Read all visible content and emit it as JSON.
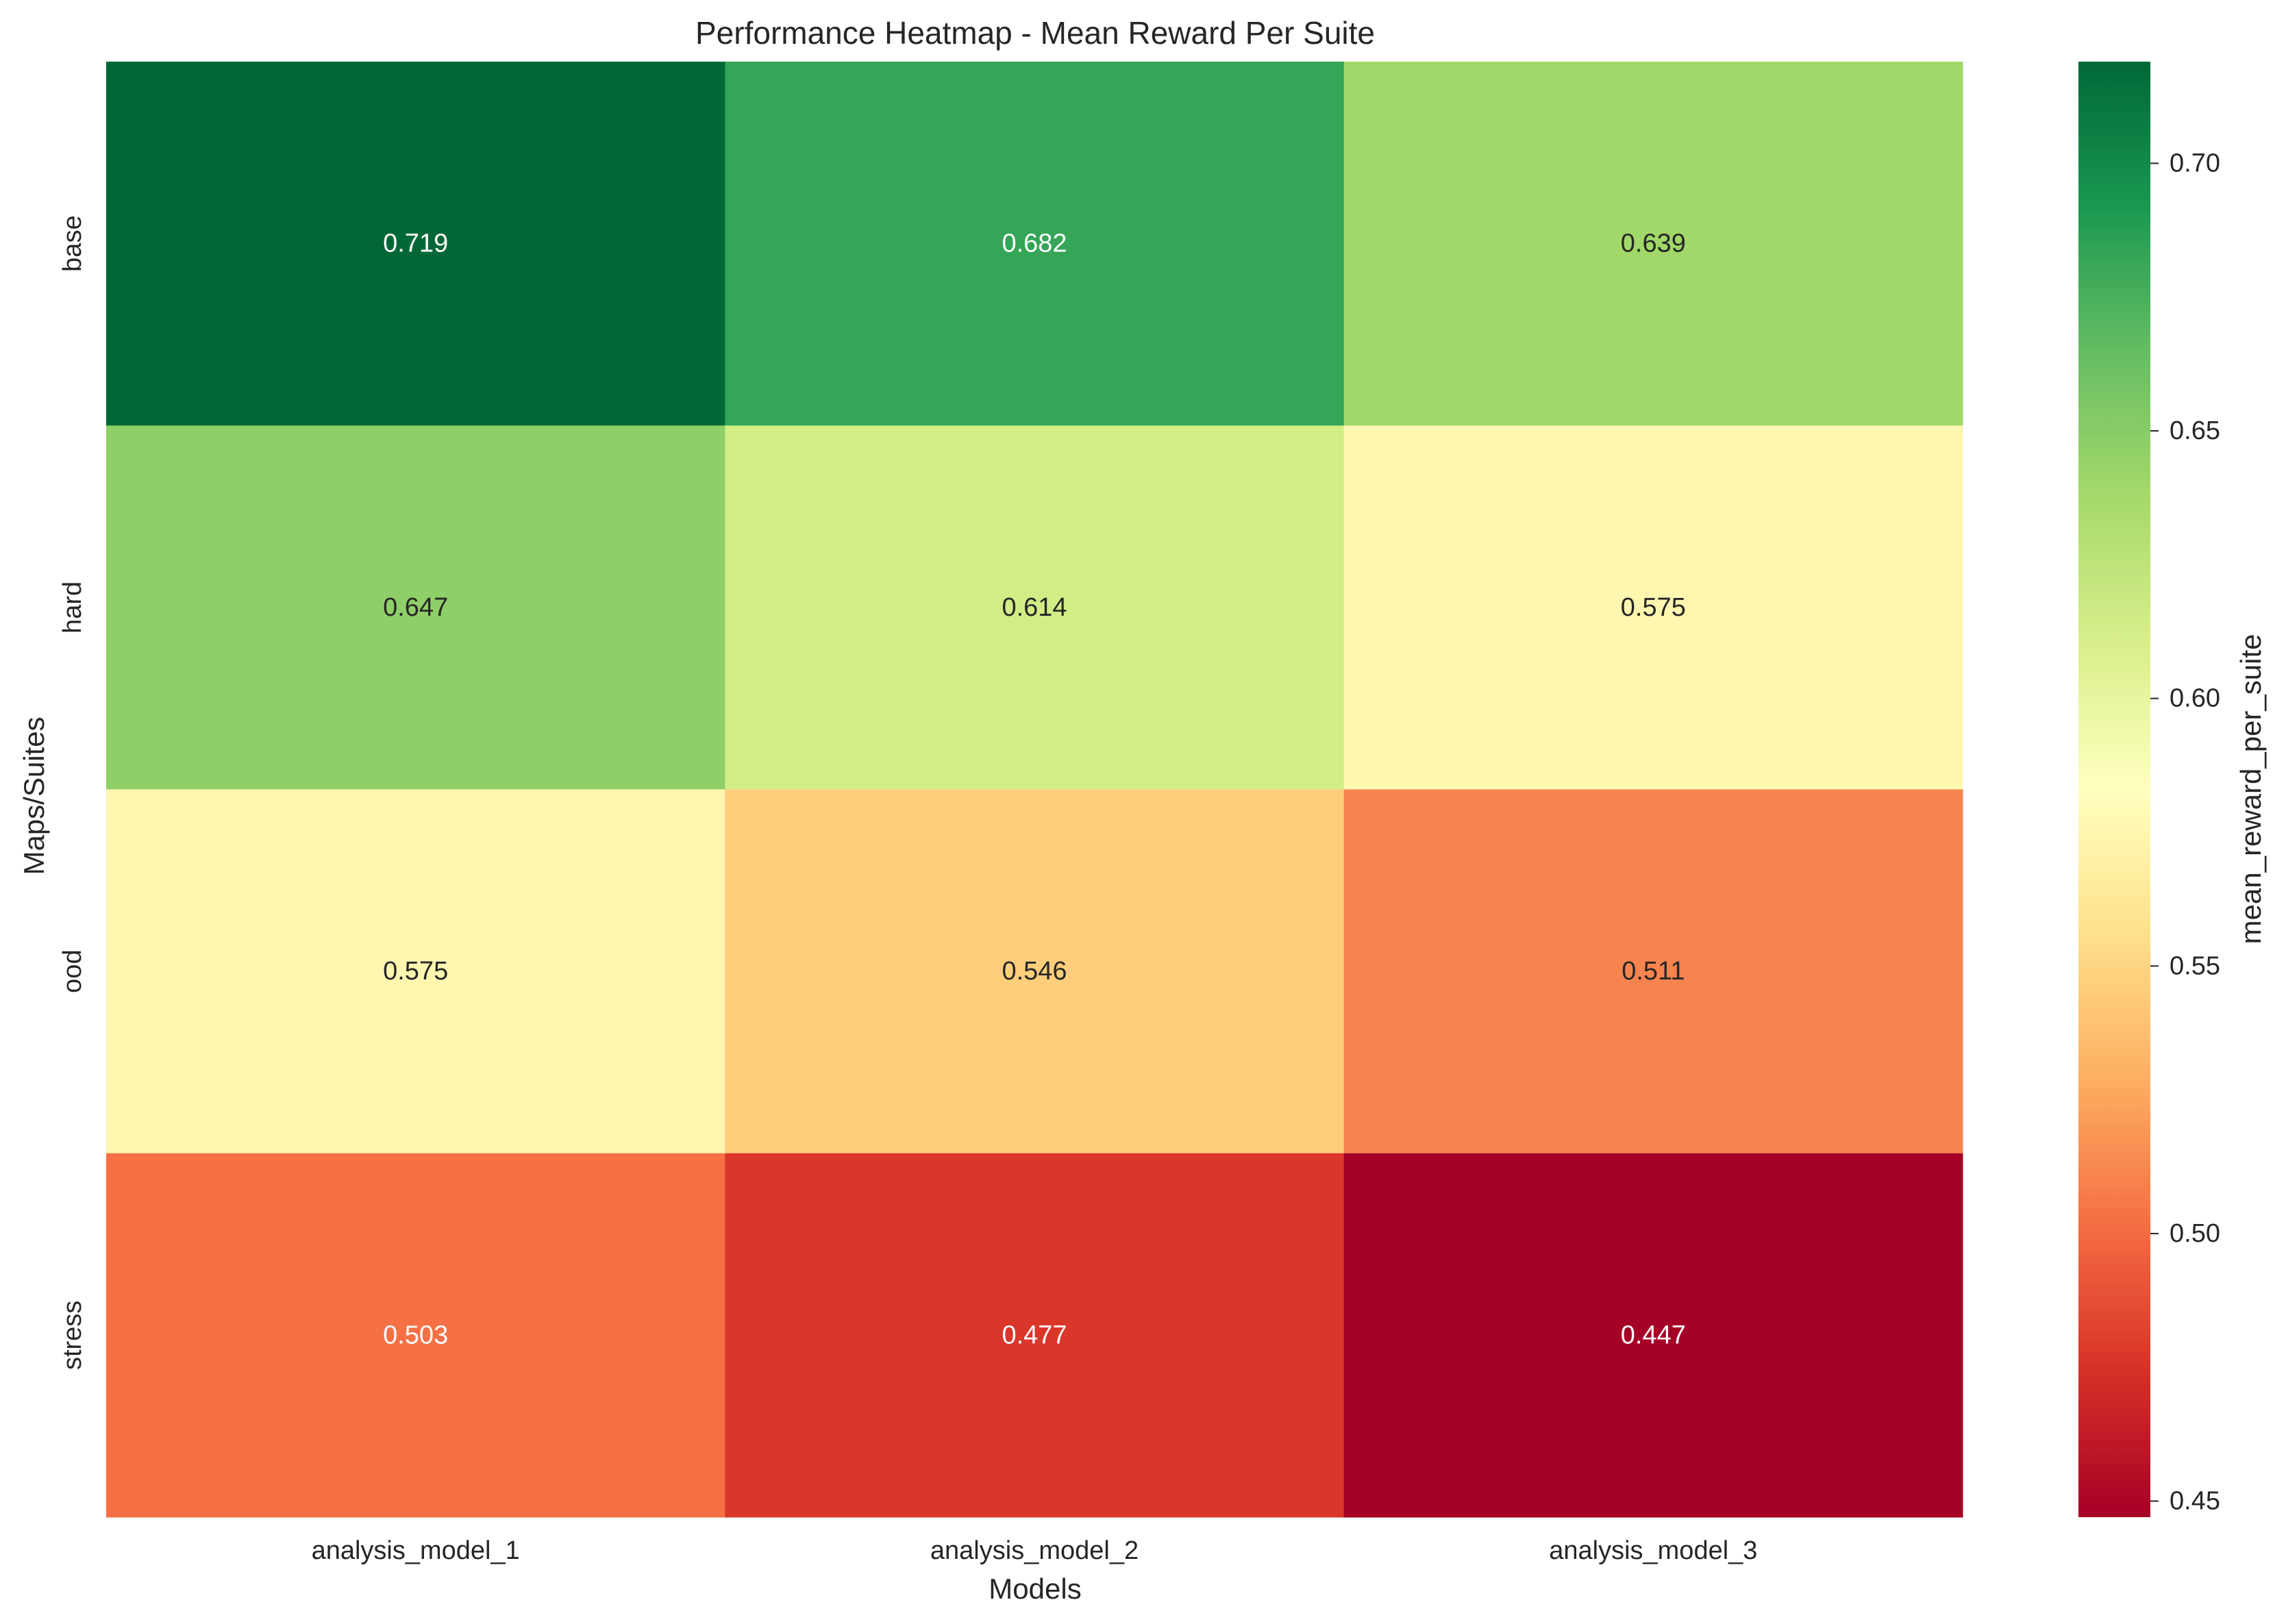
{
  "chart_data": {
    "type": "heatmap",
    "title": "Performance Heatmap - Mean Reward Per Suite",
    "xlabel": "Models",
    "ylabel": "Maps/Suites",
    "x_categories": [
      "analysis_model_1",
      "analysis_model_2",
      "analysis_model_3"
    ],
    "y_categories": [
      "base",
      "hard",
      "ood",
      "stress"
    ],
    "values": [
      [
        0.719,
        0.682,
        0.639
      ],
      [
        0.647,
        0.614,
        0.575
      ],
      [
        0.575,
        0.546,
        0.511
      ],
      [
        0.503,
        0.477,
        0.447
      ]
    ],
    "value_labels": [
      [
        "0.719",
        "0.682",
        "0.639"
      ],
      [
        "0.647",
        "0.614",
        "0.575"
      ],
      [
        "0.575",
        "0.546",
        "0.511"
      ],
      [
        "0.503",
        "0.477",
        "0.447"
      ]
    ],
    "colorscale": "RdYlGn",
    "colorbar": {
      "label": "mean_reward_per_suite",
      "range": [
        0.447,
        0.719
      ],
      "ticks": [
        0.45,
        0.5,
        0.55,
        0.6,
        0.65,
        0.7
      ],
      "tick_labels": [
        "0.45",
        "0.50",
        "0.55",
        "0.60",
        "0.65",
        "0.70"
      ]
    },
    "grid": false
  }
}
